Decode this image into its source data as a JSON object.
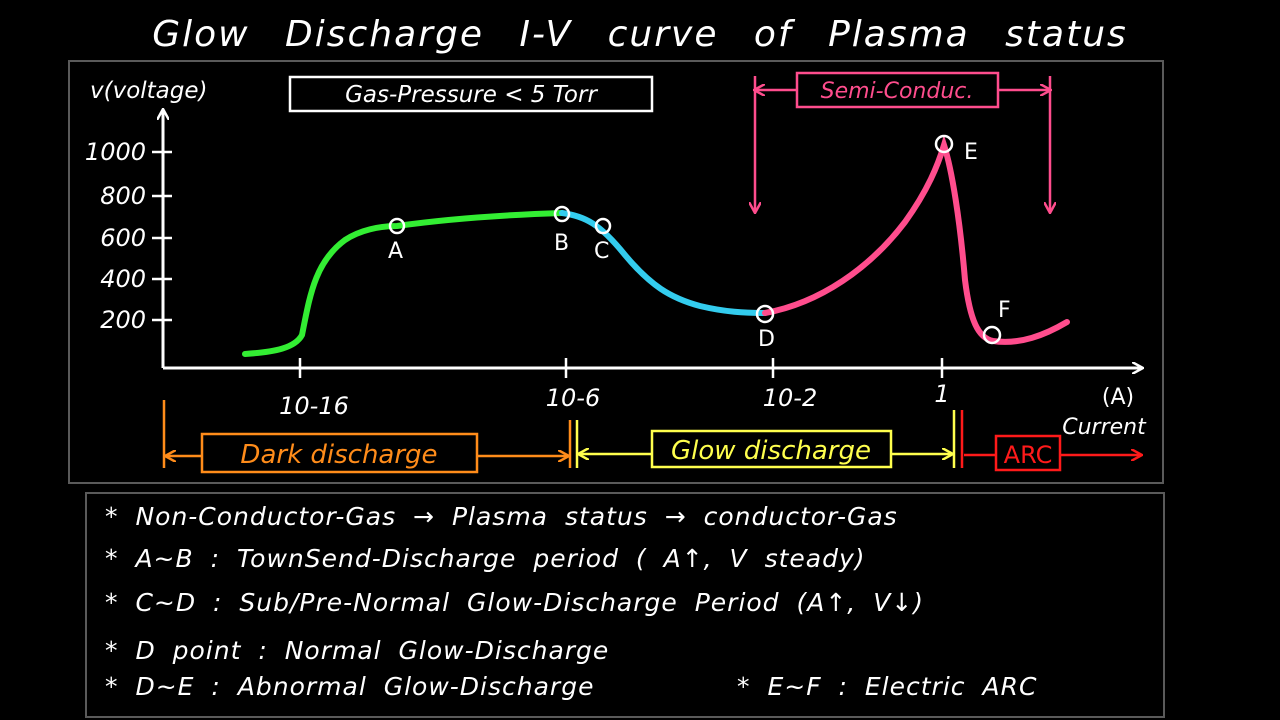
{
  "title": "Glow Discharge I-V curve of Plasma status",
  "diagram": {
    "y_axis_label": "v(voltage)",
    "y_ticks": [
      "1000",
      "800",
      "600",
      "400",
      "200"
    ],
    "x_ticks": [
      "10-16",
      "10-6",
      "10-2",
      "1"
    ],
    "x_axis_unit": "(A)",
    "x_axis_label": "Current",
    "pressure_label": "Gas-Pressure < 5 Torr",
    "semi_label": "Semi-Conduc.",
    "points": [
      "A",
      "B",
      "C",
      "D",
      "E",
      "F"
    ],
    "regions": [
      "Dark discharge",
      "Glow discharge",
      "ARC"
    ],
    "colors": {
      "dark": "#ff8c1a",
      "glow": "#ffff4d",
      "arc": "#ff1a1a",
      "semi": "#ff4d8d",
      "green_segment": "#33ee33",
      "cyan_segment": "#33ccee",
      "pink_segment": "#ff4d8d"
    }
  },
  "notes": [
    "* Non-Conductor-Gas → Plasma status → conductor-Gas",
    "* A~B : TownSend-Discharge period ( A↑, V steady)",
    "* C~D : Sub/Pre-Normal Glow-Discharge Period (A↑, V↓)",
    "* D point : Normal Glow-Discharge",
    "* D~E : Abnormal Glow-Discharge",
    "* E~F : Electric ARC"
  ]
}
